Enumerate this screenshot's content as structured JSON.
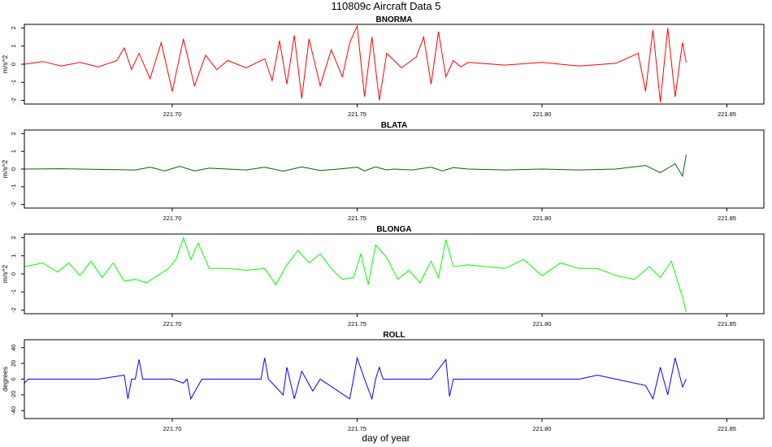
{
  "chart_data": [
    {
      "type": "line",
      "title": "BNORMA",
      "ylabel": "m/s^2",
      "color": "#ff0000",
      "xlim": [
        221.66,
        221.86
      ],
      "ylim": [
        -2.2,
        2.2
      ],
      "xticks": [
        221.7,
        221.75,
        221.8,
        221.85
      ],
      "xtick_labels": [
        "221.70",
        "221.75",
        "221.80",
        "221.85"
      ],
      "yticks": [
        -2,
        -1,
        0,
        1,
        2
      ],
      "ytick_labels": [
        "-2",
        "-1",
        "0",
        "1",
        "2"
      ],
      "series": [
        {
          "name": "BNORMA",
          "x": [
            221.66,
            221.665,
            221.67,
            221.675,
            221.68,
            221.685,
            221.687,
            221.689,
            221.691,
            221.694,
            221.697,
            221.7,
            221.703,
            221.706,
            221.709,
            221.712,
            221.715,
            221.72,
            221.725,
            221.727,
            221.729,
            221.731,
            221.733,
            221.735,
            221.737,
            221.74,
            221.743,
            221.746,
            221.748,
            221.75,
            221.752,
            221.754,
            221.756,
            221.758,
            221.762,
            221.766,
            221.768,
            221.77,
            221.772,
            221.774,
            221.776,
            221.778,
            221.78,
            221.79,
            221.8,
            221.81,
            221.82,
            221.826,
            221.828,
            221.83,
            221.832,
            221.834,
            221.836,
            221.838,
            221.839
          ],
          "y": [
            0,
            0.15,
            -0.1,
            0.1,
            -0.15,
            0.2,
            0.9,
            -0.3,
            0.6,
            -0.8,
            1.2,
            -1.5,
            1.4,
            -1.2,
            0.5,
            -0.3,
            0.2,
            -0.2,
            0.3,
            -0.9,
            1.3,
            -1.1,
            1.6,
            -1.9,
            1.4,
            -1.2,
            0.8,
            -0.7,
            1.2,
            2.1,
            -1.8,
            1.5,
            -2.0,
            0.6,
            -0.2,
            0.4,
            1.5,
            -1.1,
            1.8,
            -0.7,
            0.2,
            -0.15,
            0.1,
            -0.05,
            0.1,
            -0.1,
            0.05,
            0.6,
            -1.5,
            1.9,
            -2.1,
            2.0,
            -1.8,
            1.2,
            0.1
          ]
        }
      ]
    },
    {
      "type": "line",
      "title": "BLATA",
      "ylabel": "m/s^2",
      "color": "#006400",
      "xlim": [
        221.66,
        221.86
      ],
      "ylim": [
        -2.2,
        2.2
      ],
      "xticks": [
        221.7,
        221.75,
        221.8,
        221.85
      ],
      "xtick_labels": [
        "221.70",
        "221.75",
        "221.80",
        "221.85"
      ],
      "yticks": [
        -2,
        -1,
        0,
        1,
        2
      ],
      "ytick_labels": [
        "-2",
        "-1",
        "0",
        "1",
        "2"
      ],
      "series": [
        {
          "name": "BLATA",
          "x": [
            221.66,
            221.67,
            221.68,
            221.69,
            221.694,
            221.698,
            221.702,
            221.706,
            221.71,
            221.72,
            221.725,
            221.73,
            221.735,
            221.74,
            221.745,
            221.75,
            221.752,
            221.755,
            221.758,
            221.76,
            221.765,
            221.77,
            221.773,
            221.776,
            221.78,
            221.79,
            221.8,
            221.81,
            221.82,
            221.828,
            221.832,
            221.836,
            221.838,
            221.839
          ],
          "y": [
            0,
            0.02,
            -0.02,
            -0.05,
            0.1,
            -0.1,
            0.15,
            -0.1,
            0.05,
            -0.05,
            0.1,
            -0.12,
            0.12,
            -0.08,
            0,
            0.1,
            -0.1,
            0.12,
            -0.05,
            0,
            -0.05,
            0.1,
            -0.1,
            0.08,
            0,
            -0.05,
            0,
            -0.05,
            0,
            0.2,
            -0.2,
            0.3,
            -0.4,
            0.8
          ]
        }
      ]
    },
    {
      "type": "line",
      "title": "BLONGA",
      "ylabel": "m/s^2",
      "color": "#00ff00",
      "xlim": [
        221.66,
        221.86
      ],
      "ylim": [
        -2.2,
        2.2
      ],
      "xticks": [
        221.7,
        221.75,
        221.8,
        221.85
      ],
      "xtick_labels": [
        "221.70",
        "221.75",
        "221.80",
        "221.85"
      ],
      "yticks": [
        -2,
        -1,
        0,
        1,
        2
      ],
      "ytick_labels": [
        "-2",
        "-1",
        "0",
        "1",
        "2"
      ],
      "series": [
        {
          "name": "BLONGA",
          "x": [
            221.66,
            221.665,
            221.669,
            221.672,
            221.675,
            221.678,
            221.681,
            221.684,
            221.687,
            221.69,
            221.693,
            221.696,
            221.699,
            221.701,
            221.703,
            221.705,
            221.707,
            221.71,
            221.715,
            221.72,
            221.725,
            221.728,
            221.731,
            221.734,
            221.737,
            221.74,
            221.743,
            221.746,
            221.749,
            221.751,
            221.753,
            221.755,
            221.758,
            221.761,
            221.764,
            221.767,
            221.77,
            221.772,
            221.774,
            221.776,
            221.78,
            221.785,
            221.79,
            221.795,
            221.8,
            221.805,
            221.81,
            221.815,
            221.82,
            221.825,
            221.829,
            221.832,
            221.835,
            221.838,
            221.839
          ],
          "y": [
            0.4,
            0.6,
            0.1,
            0.6,
            -0.1,
            0.7,
            -0.2,
            0.6,
            -0.4,
            -0.3,
            -0.5,
            -0.1,
            0.3,
            0.8,
            2.0,
            0.8,
            1.7,
            0.3,
            0.3,
            0.2,
            0.3,
            -0.6,
            0.5,
            1.3,
            0.6,
            1.1,
            0.3,
            -0.3,
            -0.2,
            1.1,
            -0.6,
            1.6,
            0.9,
            -0.3,
            0.2,
            -0.5,
            0.7,
            -0.2,
            1.9,
            0.4,
            0.5,
            0.4,
            0.3,
            0.8,
            -0.1,
            0.6,
            0.3,
            0.3,
            -0.1,
            -0.3,
            0.4,
            -0.2,
            0.7,
            -1.3,
            -2.1
          ]
        }
      ]
    },
    {
      "type": "line",
      "title": "ROLL",
      "ylabel": "degrees",
      "color": "#0000ff",
      "xlim": [
        221.66,
        221.86
      ],
      "ylim": [
        -50,
        50
      ],
      "xticks": [
        221.7,
        221.75,
        221.8,
        221.85
      ],
      "xtick_labels": [
        "221.70",
        "221.75",
        "221.80",
        "221.85"
      ],
      "yticks": [
        -40,
        -20,
        0,
        20,
        40
      ],
      "ytick_labels": [
        "-40",
        "-20",
        "0",
        "20",
        "40"
      ],
      "series": [
        {
          "name": "ROLL",
          "x": [
            221.66,
            221.661,
            221.67,
            221.68,
            221.687,
            221.688,
            221.689,
            221.69,
            221.691,
            221.692,
            221.693,
            221.694,
            221.7,
            221.703,
            221.704,
            221.705,
            221.708,
            221.709,
            221.71,
            221.72,
            221.724,
            221.725,
            221.726,
            221.73,
            221.731,
            221.733,
            221.735,
            221.738,
            221.74,
            221.748,
            221.749,
            221.75,
            221.752,
            221.754,
            221.755,
            221.756,
            221.757,
            221.76,
            221.77,
            221.774,
            221.775,
            221.776,
            221.78,
            221.79,
            221.8,
            221.81,
            221.815,
            221.82,
            221.828,
            221.83,
            221.832,
            221.834,
            221.836,
            221.838,
            221.839
          ],
          "y": [
            -5,
            0,
            0,
            0,
            5,
            -25,
            0,
            0,
            25,
            0,
            0,
            0,
            0,
            -5,
            0,
            -25,
            0,
            0,
            0,
            0,
            0,
            27,
            0,
            -20,
            15,
            -25,
            10,
            -15,
            0,
            -25,
            0,
            27,
            0,
            -25,
            0,
            15,
            0,
            0,
            0,
            25,
            -22,
            0,
            0,
            0,
            0,
            0,
            5,
            0,
            -8,
            -25,
            15,
            -20,
            27,
            -10,
            0
          ]
        }
      ]
    }
  ],
  "figure": {
    "title": "110809c   Aircraft Data 5",
    "xlabel": "day of year"
  }
}
